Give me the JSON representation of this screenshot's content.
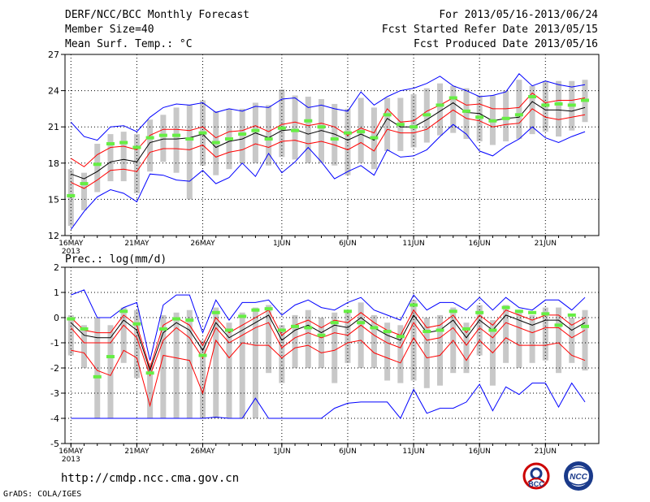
{
  "header": {
    "title": "DERF/NCC/BCC Monthly Forecast",
    "member_size": "Member Size=40",
    "variable": "Mean Surf. Temp.: °C",
    "period": "For 2013/05/16-2013/06/24",
    "start_date": "Fcst Started Refer Date 2013/05/15",
    "produced_date": "Fcst Produced Date 2013/05/16"
  },
  "footer": {
    "url": "http://cmdp.ncc.cma.gov.cn",
    "credit": "GrADS: COLA/IGES",
    "logo_left_text": "BCC",
    "logo_right_text": "NCC"
  },
  "colors": {
    "mean": "#000000",
    "spread": "#ff0000",
    "envelope": "#0000ff",
    "box": "#c8c8c8",
    "median": "#66ee44",
    "grid": "#000000"
  },
  "chart_data": [
    {
      "type": "line",
      "name": "temperature",
      "ylabel": "Mean Surf. Temp.: °C",
      "ylim": [
        12,
        27
      ],
      "yticks": [
        12,
        15,
        18,
        21,
        24,
        27
      ],
      "x_ticks": [
        {
          "day": 1,
          "label": "16MAY",
          "sublabel": "2013"
        },
        {
          "day": 6,
          "label": "21MAY"
        },
        {
          "day": 11,
          "label": "26MAY"
        },
        {
          "day": 17,
          "label": "1JUN"
        },
        {
          "day": 22,
          "label": "6JUN"
        },
        {
          "day": 27,
          "label": "11JUN"
        },
        {
          "day": 32,
          "label": "16JUN"
        },
        {
          "day": 37,
          "label": "21JUN"
        }
      ],
      "days": 40,
      "series": [
        {
          "name": "max",
          "values": [
            21.4,
            20.2,
            19.9,
            21.0,
            21.1,
            20.6,
            21.8,
            22.6,
            22.9,
            22.8,
            23.0,
            22.2,
            22.5,
            22.3,
            22.7,
            22.6,
            23.3,
            23.4,
            22.6,
            22.8,
            22.5,
            22.3,
            23.9,
            22.8,
            23.5,
            24.0,
            24.2,
            24.6,
            25.2,
            24.4,
            24.0,
            23.5,
            23.6,
            23.9,
            25.4,
            24.4,
            24.8,
            24.5,
            24.3,
            24.5
          ]
        },
        {
          "name": "upper",
          "values": [
            18.4,
            17.7,
            18.7,
            19.3,
            19.4,
            19.1,
            20.3,
            20.8,
            20.8,
            20.7,
            21.0,
            20.1,
            20.6,
            20.7,
            21.1,
            20.6,
            21.2,
            21.4,
            21.1,
            21.3,
            21.0,
            20.3,
            20.9,
            20.5,
            22.5,
            21.4,
            21.5,
            22.3,
            22.8,
            23.4,
            22.8,
            22.9,
            22.5,
            22.5,
            22.6,
            23.8,
            23.0,
            23.2,
            23.2,
            23.4
          ]
        },
        {
          "name": "mean",
          "values": [
            17.1,
            16.7,
            17.3,
            18.1,
            18.3,
            18.1,
            19.7,
            20.0,
            20.0,
            20.1,
            20.4,
            19.3,
            19.8,
            20.0,
            20.5,
            20.1,
            20.7,
            20.8,
            20.4,
            20.7,
            20.4,
            19.9,
            20.4,
            19.9,
            21.7,
            21.0,
            21.0,
            21.6,
            22.3,
            23.0,
            22.2,
            22.1,
            21.5,
            21.7,
            21.8,
            23.1,
            22.4,
            22.4,
            22.3,
            22.6
          ]
        },
        {
          "name": "lower",
          "values": [
            16.4,
            15.9,
            16.6,
            17.4,
            17.5,
            17.3,
            18.9,
            19.2,
            19.2,
            19.1,
            19.5,
            18.5,
            18.9,
            19.1,
            19.6,
            19.3,
            19.8,
            19.9,
            19.6,
            19.8,
            19.5,
            19.1,
            19.7,
            19.0,
            20.8,
            20.5,
            20.5,
            20.8,
            21.6,
            22.4,
            21.7,
            21.5,
            21.0,
            21.2,
            21.3,
            22.5,
            21.8,
            21.6,
            21.8,
            22.0
          ]
        },
        {
          "name": "min",
          "values": [
            12.5,
            14.0,
            15.2,
            15.8,
            15.5,
            14.8,
            17.1,
            17.0,
            16.6,
            16.5,
            17.4,
            16.3,
            16.8,
            18.0,
            16.9,
            18.8,
            17.2,
            18.1,
            19.3,
            18.1,
            16.7,
            17.3,
            17.8,
            17.0,
            19.1,
            18.5,
            18.6,
            19.1,
            20.2,
            21.2,
            20.4,
            19.0,
            18.6,
            19.4,
            20.0,
            21.0,
            20.1,
            19.7,
            20.2,
            20.6
          ]
        }
      ],
      "boxes": {
        "low": [
          12.8,
          14.1,
          15.6,
          16.5,
          16.5,
          15.5,
          17.3,
          18.1,
          17.2,
          15.0,
          17.8,
          17.0,
          17.5,
          18.0,
          18.0,
          17.8,
          18.5,
          18.3,
          18.0,
          18.0,
          17.8,
          17.0,
          18.0,
          17.5,
          19.0,
          19.0,
          19.3,
          19.7,
          20.3,
          20.5,
          20.0,
          19.8,
          19.5,
          19.8,
          20.0,
          20.4,
          20.6,
          20.2,
          20.7,
          21.4
        ],
        "high": [
          17.5,
          17.2,
          19.6,
          20.4,
          20.6,
          20.4,
          21.6,
          22.0,
          22.6,
          22.8,
          23.2,
          22.3,
          22.5,
          22.5,
          23.0,
          22.8,
          24.1,
          23.6,
          23.5,
          23.3,
          22.9,
          22.5,
          23.4,
          22.6,
          23.4,
          23.4,
          23.7,
          24.2,
          24.6,
          24.4,
          24.2,
          23.6,
          23.6,
          24.0,
          24.9,
          24.4,
          24.8,
          24.8,
          24.8,
          24.9
        ],
        "median": [
          15.3,
          16.3,
          17.9,
          19.6,
          19.7,
          19.3,
          20.1,
          20.3,
          20.3,
          20.0,
          20.5,
          19.7,
          20.0,
          20.4,
          20.7,
          20.0,
          20.9,
          20.7,
          21.5,
          21.0,
          20.0,
          20.5,
          20.6,
          20.1,
          22.0,
          21.2,
          21.0,
          22.0,
          22.8,
          23.4,
          22.3,
          21.8,
          21.5,
          21.7,
          22.0,
          23.5,
          22.8,
          22.9,
          22.8,
          23.2
        ]
      }
    },
    {
      "type": "line",
      "name": "precipitation",
      "ylabel": "Prec.: log(mm/d)",
      "ylim": [
        -5,
        2
      ],
      "yticks": [
        -5,
        -4,
        -3,
        -2,
        -1,
        0,
        1,
        2
      ],
      "x_ticks": [
        {
          "day": 1,
          "label": "16MAY",
          "sublabel": "2013"
        },
        {
          "day": 6,
          "label": "21MAY"
        },
        {
          "day": 11,
          "label": "26MAY"
        },
        {
          "day": 17,
          "label": "1JUN"
        },
        {
          "day": 22,
          "label": "6JUN"
        },
        {
          "day": 27,
          "label": "11JUN"
        },
        {
          "day": 32,
          "label": "16JUN"
        },
        {
          "day": 37,
          "label": "21JUN"
        }
      ],
      "days": 40,
      "series": [
        {
          "name": "max",
          "values": [
            0.9,
            1.1,
            0.0,
            0.0,
            0.4,
            0.6,
            -1.7,
            0.5,
            0.9,
            0.9,
            -0.6,
            0.7,
            -0.1,
            0.6,
            0.6,
            0.7,
            0.1,
            0.5,
            0.7,
            0.4,
            0.3,
            0.6,
            0.8,
            0.3,
            0.1,
            -0.1,
            0.9,
            0.3,
            0.6,
            0.6,
            0.3,
            0.8,
            0.3,
            0.8,
            0.4,
            0.3,
            0.7,
            0.7,
            0.3,
            0.8
          ]
        },
        {
          "name": "upper",
          "values": [
            0.0,
            -0.5,
            -0.6,
            -0.6,
            0.1,
            -0.3,
            -2.0,
            -0.3,
            0.0,
            -0.3,
            -1.1,
            0.0,
            -0.6,
            -0.3,
            0.0,
            0.3,
            -0.7,
            -0.3,
            -0.1,
            -0.4,
            -0.1,
            -0.2,
            0.2,
            -0.2,
            -0.5,
            -0.7,
            0.3,
            -0.4,
            -0.3,
            0.1,
            -0.6,
            0.1,
            -0.3,
            0.3,
            0.1,
            -0.1,
            0.1,
            0.1,
            -0.3,
            0.0
          ]
        },
        {
          "name": "mean",
          "values": [
            -0.2,
            -0.7,
            -0.8,
            -0.8,
            -0.1,
            -0.5,
            -2.1,
            -0.6,
            -0.2,
            -0.5,
            -1.3,
            -0.2,
            -0.8,
            -0.5,
            -0.2,
            0.1,
            -0.9,
            -0.5,
            -0.3,
            -0.6,
            -0.3,
            -0.4,
            0.0,
            -0.4,
            -0.7,
            -0.9,
            0.1,
            -0.6,
            -0.5,
            -0.1,
            -0.8,
            -0.1,
            -0.5,
            0.1,
            -0.1,
            -0.3,
            -0.1,
            -0.1,
            -0.5,
            -0.2
          ]
        },
        {
          "name": "lower",
          "values": [
            -0.4,
            -1.0,
            -1.0,
            -1.0,
            -0.3,
            -0.8,
            -2.3,
            -0.9,
            -0.4,
            -0.8,
            -1.6,
            -0.4,
            -1.0,
            -0.7,
            -0.4,
            -0.2,
            -1.2,
            -0.8,
            -0.6,
            -0.8,
            -0.6,
            -0.7,
            -0.3,
            -0.7,
            -1.0,
            -1.2,
            -0.2,
            -0.9,
            -0.8,
            -0.4,
            -1.1,
            -0.4,
            -0.8,
            -0.2,
            -0.4,
            -0.6,
            -0.4,
            -0.4,
            -0.8,
            -0.5
          ]
        },
        {
          "name": "lower2",
          "values": [
            -1.3,
            -1.4,
            -2.1,
            -2.3,
            -1.3,
            -1.6,
            -3.5,
            -1.5,
            -1.6,
            -1.7,
            -3.0,
            -0.9,
            -1.6,
            -1.0,
            -1.1,
            -1.1,
            -1.6,
            -1.2,
            -1.1,
            -1.4,
            -1.3,
            -1.0,
            -0.9,
            -1.4,
            -1.6,
            -1.8,
            -0.8,
            -1.6,
            -1.5,
            -0.9,
            -1.7,
            -0.9,
            -1.4,
            -0.8,
            -1.1,
            -1.1,
            -1.1,
            -1.0,
            -1.5,
            -1.7
          ]
        },
        {
          "name": "min",
          "values": [
            -4.0,
            -4.0,
            -4.0,
            -4.0,
            -4.0,
            -4.0,
            -4.0,
            -4.0,
            -4.0,
            -4.0,
            -4.0,
            -3.95,
            -4.0,
            -4.0,
            -3.2,
            -4.0,
            -4.0,
            -4.0,
            -4.0,
            -4.0,
            -3.6,
            -3.4,
            -3.35,
            -3.35,
            -3.35,
            -4.0,
            -2.85,
            -3.8,
            -3.6,
            -3.6,
            -3.35,
            -2.65,
            -3.7,
            -2.75,
            -3.05,
            -2.6,
            -2.6,
            -3.55,
            -2.6,
            -3.35
          ]
        }
      ],
      "boxes": {
        "low": [
          -1.5,
          -2.0,
          -4.0,
          -4.0,
          -1.8,
          -2.4,
          -4.0,
          -4.0,
          -4.0,
          -4.0,
          -4.0,
          -4.0,
          -4.0,
          -4.0,
          -4.0,
          -2.2,
          -2.6,
          -2.0,
          -2.0,
          -2.0,
          -2.6,
          -1.8,
          -2.0,
          -2.0,
          -2.5,
          -2.6,
          -2.5,
          -2.8,
          -2.7,
          -2.2,
          -2.2,
          -1.5,
          -2.7,
          -1.8,
          -2.0,
          -1.8,
          -1.7,
          -2.2,
          -1.8,
          -2.1
        ],
        "high": [
          0.1,
          -0.3,
          0.0,
          -0.3,
          0.4,
          0.3,
          -1.8,
          0.1,
          0.2,
          0.3,
          -0.9,
          0.4,
          -0.2,
          0.2,
          0.4,
          0.5,
          -0.3,
          0.1,
          0.3,
          0.0,
          0.2,
          0.3,
          0.6,
          0.1,
          -0.2,
          -0.3,
          0.7,
          0.0,
          0.1,
          0.4,
          -0.2,
          0.5,
          -0.1,
          0.5,
          0.3,
          0.1,
          0.4,
          0.4,
          0.0,
          0.3
        ],
        "median": [
          -0.05,
          -0.45,
          -2.35,
          -1.55,
          0.25,
          -0.25,
          -2.2,
          -0.45,
          -0.05,
          -0.1,
          -1.5,
          0.2,
          -0.5,
          0.05,
          0.3,
          0.35,
          -0.5,
          -0.35,
          -0.4,
          -0.7,
          -0.2,
          0.25,
          -0.2,
          -0.4,
          -0.55,
          -0.75,
          0.5,
          -0.55,
          -0.5,
          0.25,
          -0.45,
          0.2,
          -0.5,
          0.4,
          0.25,
          0.2,
          0.15,
          -0.3,
          0.1,
          -0.35
        ]
      }
    }
  ]
}
